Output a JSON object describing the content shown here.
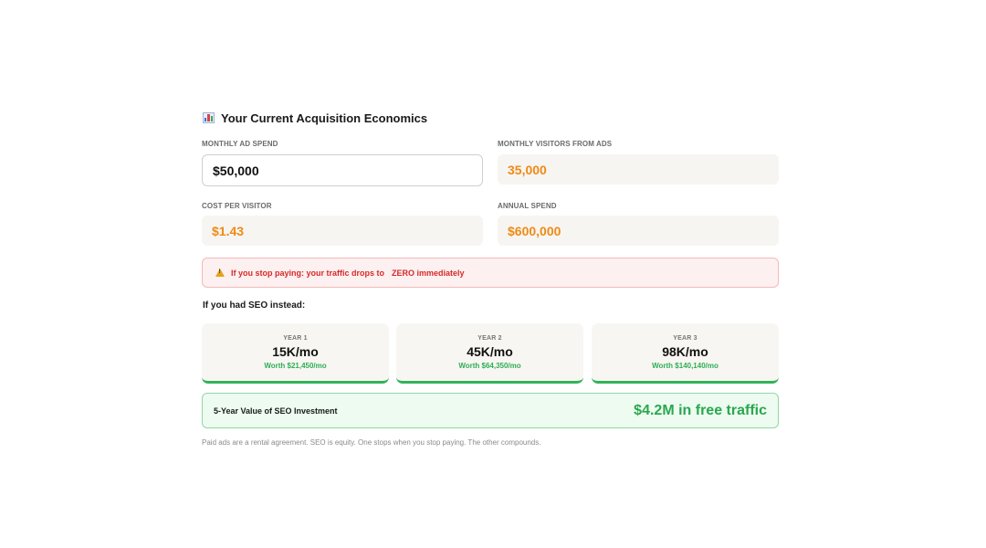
{
  "section": {
    "title": "Your Current Acquisition Economics",
    "title_icon": "bar-chart-icon"
  },
  "fields": {
    "monthly_ad_spend": {
      "label": "MONTHLY AD SPEND",
      "value": "$50,000"
    },
    "monthly_visitors": {
      "label": "MONTHLY VISITORS FROM ADS",
      "value": "35,000"
    },
    "cost_per_visitor": {
      "label": "COST PER VISITOR",
      "value": "$1.43"
    },
    "annual_spend": {
      "label": "ANNUAL SPEND",
      "value": "$600,000"
    }
  },
  "alert": {
    "icon": "warning-icon",
    "text": "If you stop paying: your traffic drops to",
    "emphasis": "ZERO immediately"
  },
  "seo": {
    "heading": "If you had SEO instead:",
    "years": [
      {
        "label": "YEAR 1",
        "traffic": "15K/mo",
        "worth": "Worth $21,450/mo"
      },
      {
        "label": "YEAR 2",
        "traffic": "45K/mo",
        "worth": "Worth $64,350/mo"
      },
      {
        "label": "YEAR 3",
        "traffic": "98K/mo",
        "worth": "Worth $140,140/mo"
      }
    ],
    "five_year": {
      "label": "5-Year Value of SEO Investment",
      "amount": "$4.2M in free traffic"
    }
  },
  "footnote": "Paid ads are a rental agreement. SEO is equity. One stops when you stop paying. The other compounds.",
  "colors": {
    "accent_orange": "#f08a16",
    "alert_red": "#d62a2a",
    "success_green": "#2fb457"
  }
}
